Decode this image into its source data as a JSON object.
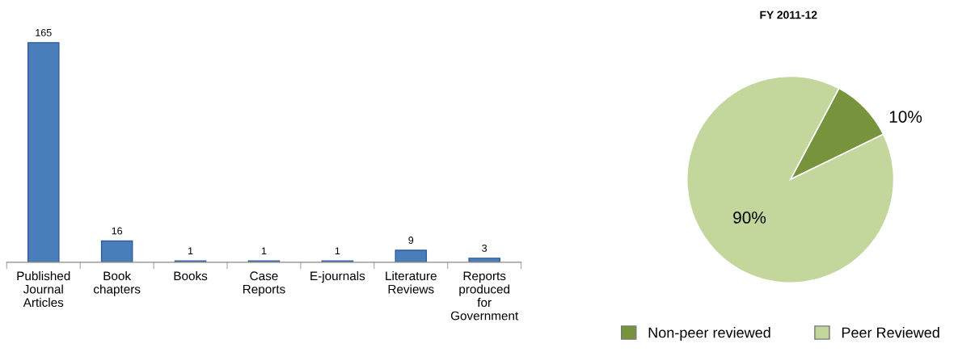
{
  "chart_data": [
    {
      "type": "bar",
      "categories": [
        "Published\nJournal\nArticles",
        "Book\nchapters",
        "Books",
        "Case\nReports",
        "E-journals",
        "Literature\nReviews",
        "Reports\nproduced\nfor\nGovernment"
      ],
      "values": [
        165,
        16,
        1,
        1,
        1,
        9,
        3
      ],
      "color": "#4a7ebb",
      "data_labels": true,
      "grid": false,
      "legend": false
    },
    {
      "type": "pie",
      "title": "FY 2011-12",
      "categories": [
        "Non-peer reviewed",
        "Peer Reviewed"
      ],
      "values": [
        10,
        90
      ],
      "colors": [
        "#77933c",
        "#c3d69b"
      ],
      "value_labels": [
        "10%",
        "90%"
      ],
      "legend": "bottom"
    }
  ]
}
